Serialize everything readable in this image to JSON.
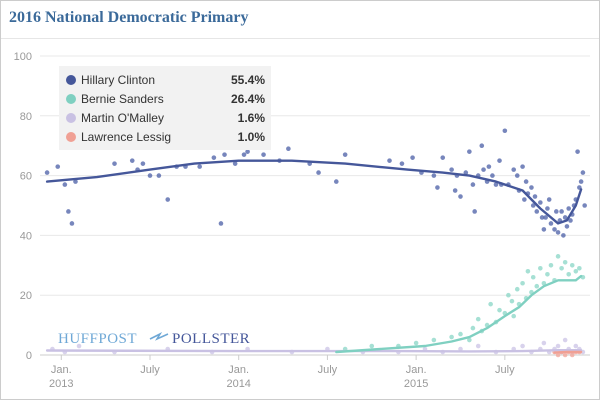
{
  "title": "2016 National Democratic Primary",
  "logo": {
    "left": "HUFFPOST",
    "right": "POLLSTER"
  },
  "chart_data": {
    "type": "scatter",
    "ylim": [
      0,
      100
    ],
    "yticks": [
      0,
      20,
      40,
      60,
      80,
      100
    ],
    "xlim": [
      2012.88,
      2015.98
    ],
    "xticks": [
      {
        "x": 2013.0,
        "label": "Jan.",
        "year": "2013"
      },
      {
        "x": 2013.5,
        "label": "July",
        "year": ""
      },
      {
        "x": 2014.0,
        "label": "Jan.",
        "year": "2014"
      },
      {
        "x": 2014.5,
        "label": "July",
        "year": ""
      },
      {
        "x": 2015.0,
        "label": "Jan.",
        "year": "2015"
      },
      {
        "x": 2015.5,
        "label": "July",
        "year": ""
      }
    ],
    "legend": {
      "placement": "top-left"
    },
    "series": [
      {
        "name": "Hillary Clinton",
        "value_label": "55.4%",
        "color": "#45579a",
        "dot_color": "#4a5ea6",
        "trend": [
          [
            2012.92,
            58
          ],
          [
            2013.2,
            59.5
          ],
          [
            2013.5,
            62
          ],
          [
            2013.75,
            64
          ],
          [
            2014.0,
            65
          ],
          [
            2014.3,
            65
          ],
          [
            2014.6,
            64
          ],
          [
            2014.95,
            62
          ],
          [
            2015.15,
            61
          ],
          [
            2015.3,
            60
          ],
          [
            2015.45,
            58
          ],
          [
            2015.6,
            55
          ],
          [
            2015.7,
            49
          ],
          [
            2015.8,
            44
          ],
          [
            2015.85,
            45
          ],
          [
            2015.9,
            50
          ],
          [
            2015.93,
            55.4
          ]
        ],
        "points": [
          [
            2012.92,
            61
          ],
          [
            2012.98,
            63
          ],
          [
            2013.02,
            57
          ],
          [
            2013.04,
            48
          ],
          [
            2013.06,
            44
          ],
          [
            2013.08,
            58
          ],
          [
            2013.3,
            64
          ],
          [
            2013.4,
            65
          ],
          [
            2013.43,
            62
          ],
          [
            2013.46,
            64
          ],
          [
            2013.5,
            60
          ],
          [
            2013.55,
            60
          ],
          [
            2013.6,
            52
          ],
          [
            2013.65,
            63
          ],
          [
            2013.7,
            63
          ],
          [
            2013.78,
            63
          ],
          [
            2013.86,
            66
          ],
          [
            2013.9,
            44
          ],
          [
            2013.92,
            67
          ],
          [
            2013.98,
            64
          ],
          [
            2014.03,
            67
          ],
          [
            2014.05,
            68
          ],
          [
            2014.14,
            67
          ],
          [
            2014.23,
            65
          ],
          [
            2014.28,
            69
          ],
          [
            2014.4,
            64
          ],
          [
            2014.45,
            61
          ],
          [
            2014.55,
            58
          ],
          [
            2014.6,
            67
          ],
          [
            2014.85,
            65
          ],
          [
            2014.92,
            64
          ],
          [
            2014.98,
            66
          ],
          [
            2015.03,
            61
          ],
          [
            2015.1,
            60
          ],
          [
            2015.12,
            56
          ],
          [
            2015.15,
            66
          ],
          [
            2015.2,
            62
          ],
          [
            2015.22,
            55
          ],
          [
            2015.23,
            60
          ],
          [
            2015.25,
            53
          ],
          [
            2015.28,
            61
          ],
          [
            2015.3,
            68
          ],
          [
            2015.32,
            57
          ],
          [
            2015.33,
            48
          ],
          [
            2015.35,
            60
          ],
          [
            2015.37,
            70
          ],
          [
            2015.38,
            62
          ],
          [
            2015.4,
            58
          ],
          [
            2015.41,
            63
          ],
          [
            2015.43,
            60
          ],
          [
            2015.45,
            57
          ],
          [
            2015.47,
            65
          ],
          [
            2015.48,
            57
          ],
          [
            2015.5,
            75
          ],
          [
            2015.52,
            57
          ],
          [
            2015.55,
            62
          ],
          [
            2015.57,
            60
          ],
          [
            2015.58,
            55
          ],
          [
            2015.6,
            63
          ],
          [
            2015.61,
            52
          ],
          [
            2015.62,
            58
          ],
          [
            2015.63,
            54
          ],
          [
            2015.65,
            56
          ],
          [
            2015.66,
            50
          ],
          [
            2015.67,
            53
          ],
          [
            2015.68,
            48
          ],
          [
            2015.7,
            51
          ],
          [
            2015.71,
            46
          ],
          [
            2015.72,
            42
          ],
          [
            2015.73,
            46
          ],
          [
            2015.74,
            49
          ],
          [
            2015.75,
            52
          ],
          [
            2015.76,
            44
          ],
          [
            2015.78,
            42
          ],
          [
            2015.79,
            48
          ],
          [
            2015.8,
            41
          ],
          [
            2015.81,
            45
          ],
          [
            2015.82,
            48
          ],
          [
            2015.83,
            40
          ],
          [
            2015.84,
            46
          ],
          [
            2015.85,
            43
          ],
          [
            2015.86,
            49
          ],
          [
            2015.87,
            45
          ],
          [
            2015.88,
            47
          ],
          [
            2015.89,
            50
          ],
          [
            2015.9,
            52
          ],
          [
            2015.91,
            68
          ],
          [
            2015.92,
            56
          ],
          [
            2015.93,
            58
          ],
          [
            2015.94,
            61
          ],
          [
            2015.95,
            50
          ]
        ]
      },
      {
        "name": "Bernie Sanders",
        "value_label": "26.4%",
        "color": "#7fd0c1",
        "dot_color": "#88d6c6",
        "trend": [
          [
            2014.55,
            1
          ],
          [
            2014.8,
            2
          ],
          [
            2015.05,
            3
          ],
          [
            2015.2,
            4.5
          ],
          [
            2015.3,
            6
          ],
          [
            2015.4,
            9
          ],
          [
            2015.5,
            13
          ],
          [
            2015.58,
            16
          ],
          [
            2015.65,
            20
          ],
          [
            2015.72,
            23
          ],
          [
            2015.8,
            25
          ],
          [
            2015.85,
            25
          ],
          [
            2015.9,
            25
          ],
          [
            2015.93,
            26.4
          ]
        ],
        "points": [
          [
            2014.6,
            2
          ],
          [
            2014.75,
            3
          ],
          [
            2014.9,
            3
          ],
          [
            2015.0,
            4
          ],
          [
            2015.1,
            5
          ],
          [
            2015.2,
            6
          ],
          [
            2015.25,
            7
          ],
          [
            2015.3,
            5
          ],
          [
            2015.32,
            9
          ],
          [
            2015.35,
            12
          ],
          [
            2015.37,
            8
          ],
          [
            2015.4,
            10
          ],
          [
            2015.42,
            17
          ],
          [
            2015.45,
            11
          ],
          [
            2015.47,
            15
          ],
          [
            2015.5,
            14
          ],
          [
            2015.52,
            20
          ],
          [
            2015.54,
            18
          ],
          [
            2015.55,
            13
          ],
          [
            2015.57,
            22
          ],
          [
            2015.58,
            17
          ],
          [
            2015.6,
            24
          ],
          [
            2015.62,
            19
          ],
          [
            2015.63,
            28
          ],
          [
            2015.65,
            21
          ],
          [
            2015.66,
            26
          ],
          [
            2015.68,
            23
          ],
          [
            2015.7,
            29
          ],
          [
            2015.72,
            24
          ],
          [
            2015.74,
            27
          ],
          [
            2015.76,
            30
          ],
          [
            2015.78,
            25
          ],
          [
            2015.8,
            33
          ],
          [
            2015.82,
            29
          ],
          [
            2015.84,
            31
          ],
          [
            2015.86,
            27
          ],
          [
            2015.88,
            30
          ],
          [
            2015.9,
            28
          ],
          [
            2015.92,
            29
          ],
          [
            2015.94,
            26
          ]
        ]
      },
      {
        "name": "Martin O'Malley",
        "value_label": "1.6%",
        "color": "#c9c1e3",
        "dot_color": "#cbc3e6",
        "trend": [
          [
            2012.92,
            1.5
          ],
          [
            2014.0,
            1.3
          ],
          [
            2014.9,
            1.3
          ],
          [
            2015.3,
            1.2
          ],
          [
            2015.6,
            1.3
          ],
          [
            2015.8,
            1.6
          ],
          [
            2015.93,
            1.6
          ]
        ],
        "points": [
          [
            2012.95,
            2
          ],
          [
            2013.02,
            1
          ],
          [
            2013.1,
            3
          ],
          [
            2013.3,
            1
          ],
          [
            2013.6,
            2
          ],
          [
            2013.85,
            1
          ],
          [
            2014.05,
            2
          ],
          [
            2014.3,
            1
          ],
          [
            2014.5,
            2
          ],
          [
            2014.7,
            1
          ],
          [
            2014.9,
            1
          ],
          [
            2015.05,
            2
          ],
          [
            2015.15,
            1
          ],
          [
            2015.25,
            2
          ],
          [
            2015.35,
            3
          ],
          [
            2015.45,
            1
          ],
          [
            2015.55,
            2
          ],
          [
            2015.6,
            3
          ],
          [
            2015.65,
            1
          ],
          [
            2015.7,
            2
          ],
          [
            2015.72,
            4
          ],
          [
            2015.75,
            1
          ],
          [
            2015.78,
            2
          ],
          [
            2015.8,
            3
          ],
          [
            2015.82,
            1
          ],
          [
            2015.84,
            5
          ],
          [
            2015.86,
            2
          ],
          [
            2015.88,
            1
          ],
          [
            2015.9,
            3
          ],
          [
            2015.92,
            2
          ],
          [
            2015.94,
            1
          ]
        ]
      },
      {
        "name": "Lawrence Lessig",
        "value_label": "1.0%",
        "color": "#f0a094",
        "dot_color": "#f2a397",
        "trend": [
          [
            2015.78,
            0.8
          ],
          [
            2015.85,
            1.0
          ],
          [
            2015.93,
            1.0
          ]
        ],
        "points": [
          [
            2015.78,
            1
          ],
          [
            2015.8,
            0
          ],
          [
            2015.82,
            1
          ],
          [
            2015.84,
            0
          ],
          [
            2015.86,
            1
          ],
          [
            2015.88,
            0
          ],
          [
            2015.9,
            1
          ],
          [
            2015.92,
            1
          ]
        ]
      }
    ]
  }
}
